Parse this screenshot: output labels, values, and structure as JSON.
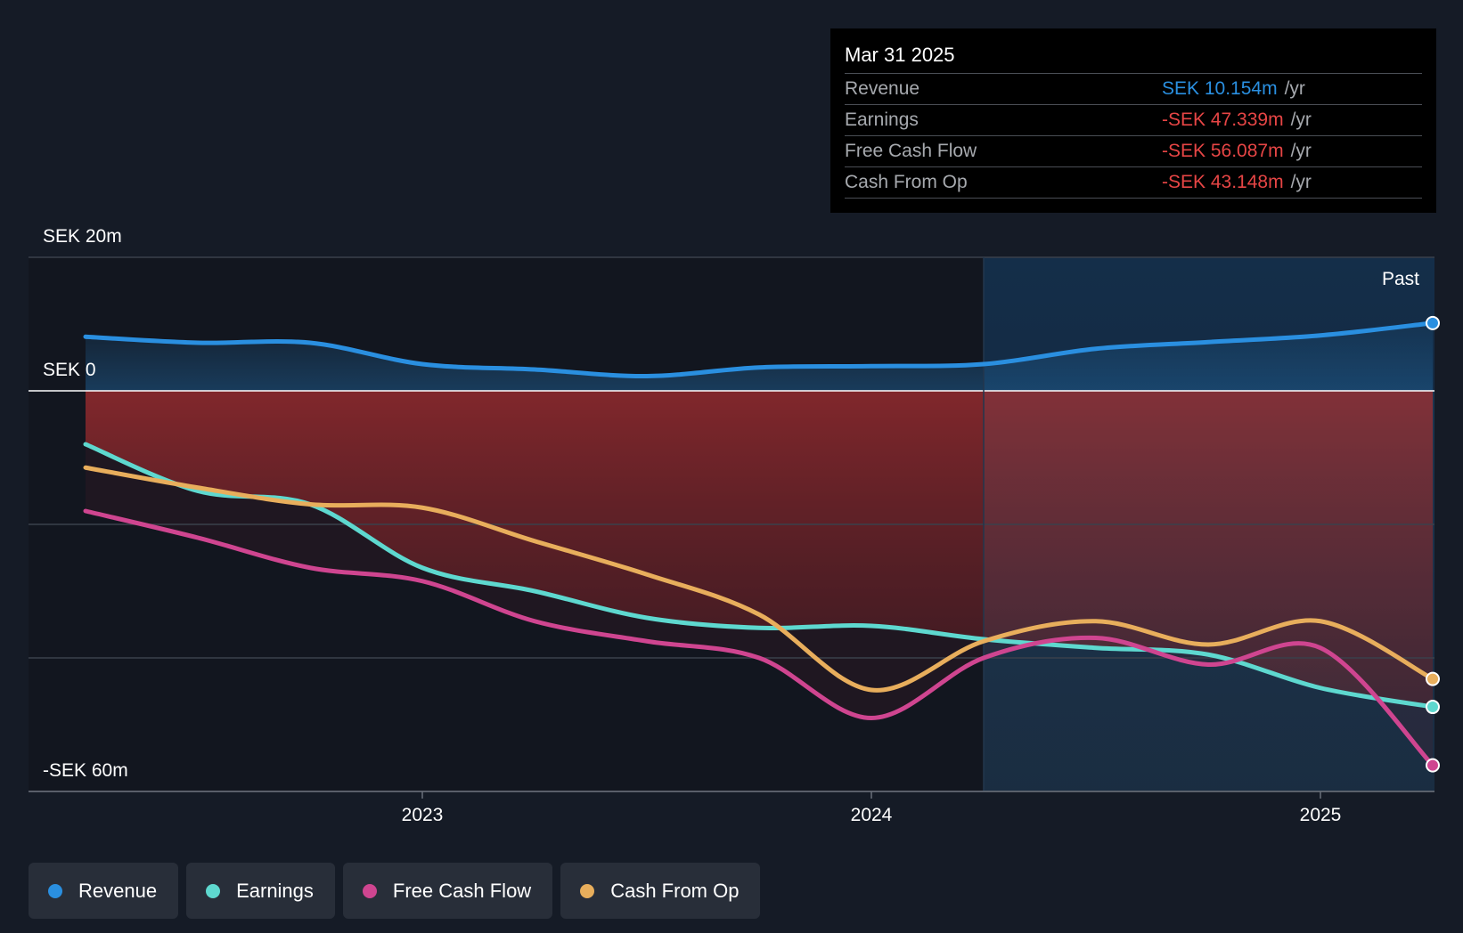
{
  "tooltip": {
    "date": "Mar 31 2025",
    "rows": [
      {
        "name": "Revenue",
        "value": "SEK 10.154m",
        "unit": "/yr",
        "color": "#2a8fe0"
      },
      {
        "name": "Earnings",
        "value": "-SEK 47.339m",
        "unit": "/yr",
        "color": "#e64545"
      },
      {
        "name": "Free Cash Flow",
        "value": "-SEK 56.087m",
        "unit": "/yr",
        "color": "#e64545"
      },
      {
        "name": "Cash From Op",
        "value": "-SEK 43.148m",
        "unit": "/yr",
        "color": "#e64545"
      }
    ]
  },
  "legend": [
    {
      "label": "Revenue",
      "color": "#2a8fe0"
    },
    {
      "label": "Earnings",
      "color": "#5ed8cf"
    },
    {
      "label": "Free Cash Flow",
      "color": "#cf4590"
    },
    {
      "label": "Cash From Op",
      "color": "#e8ae5c"
    }
  ],
  "chart_data": {
    "type": "line",
    "y_labels": [
      "SEK 20m",
      "SEK 0",
      "-SEK 60m"
    ],
    "x_ticks": [
      {
        "label": "2023",
        "x": 2023.0
      },
      {
        "label": "2024",
        "x": 2024.0
      },
      {
        "label": "2025",
        "x": 2025.0
      }
    ],
    "past_label": "Past",
    "past_from": 2024.25,
    "ylim": [
      -60,
      20
    ],
    "xlim": [
      2022.12,
      2025.25
    ],
    "grid": true,
    "series": [
      {
        "name": "Revenue",
        "color": "#2a8fe0",
        "points": [
          [
            2022.25,
            8.1
          ],
          [
            2022.5,
            7.2
          ],
          [
            2022.75,
            7.2
          ],
          [
            2023.0,
            4.0
          ],
          [
            2023.25,
            3.2
          ],
          [
            2023.5,
            2.2
          ],
          [
            2023.75,
            3.5
          ],
          [
            2024.0,
            3.7
          ],
          [
            2024.25,
            4.0
          ],
          [
            2024.5,
            6.3
          ],
          [
            2024.75,
            7.3
          ],
          [
            2025.0,
            8.3
          ],
          [
            2025.25,
            10.154
          ]
        ]
      },
      {
        "name": "Earnings",
        "color": "#5ed8cf",
        "points": [
          [
            2022.25,
            -8.0
          ],
          [
            2022.5,
            -15.0
          ],
          [
            2022.75,
            -17.0
          ],
          [
            2023.0,
            -26.5
          ],
          [
            2023.25,
            -30.0
          ],
          [
            2023.5,
            -34.0
          ],
          [
            2023.75,
            -35.5
          ],
          [
            2024.0,
            -35.2
          ],
          [
            2024.25,
            -37.2
          ],
          [
            2024.5,
            -38.5
          ],
          [
            2024.75,
            -39.5
          ],
          [
            2025.0,
            -44.5
          ],
          [
            2025.25,
            -47.339
          ]
        ]
      },
      {
        "name": "Free Cash Flow",
        "color": "#cf4590",
        "points": [
          [
            2022.25,
            -18.0
          ],
          [
            2022.5,
            -22.0
          ],
          [
            2022.75,
            -26.5
          ],
          [
            2023.0,
            -28.5
          ],
          [
            2023.25,
            -34.5
          ],
          [
            2023.5,
            -37.5
          ],
          [
            2023.75,
            -40.0
          ],
          [
            2024.0,
            -49.0
          ],
          [
            2024.25,
            -40.0
          ],
          [
            2024.5,
            -37.0
          ],
          [
            2024.75,
            -41.0
          ],
          [
            2025.0,
            -38.5
          ],
          [
            2025.25,
            -56.087
          ]
        ]
      },
      {
        "name": "Cash From Op",
        "color": "#e8ae5c",
        "points": [
          [
            2022.25,
            -11.5
          ],
          [
            2022.5,
            -14.5
          ],
          [
            2022.75,
            -17.0
          ],
          [
            2023.0,
            -17.5
          ],
          [
            2023.25,
            -22.5
          ],
          [
            2023.5,
            -27.5
          ],
          [
            2023.75,
            -33.5
          ],
          [
            2024.0,
            -44.8
          ],
          [
            2024.25,
            -37.5
          ],
          [
            2024.5,
            -34.5
          ],
          [
            2024.75,
            -38.0
          ],
          [
            2025.0,
            -34.5
          ],
          [
            2025.25,
            -43.148
          ]
        ]
      }
    ]
  }
}
